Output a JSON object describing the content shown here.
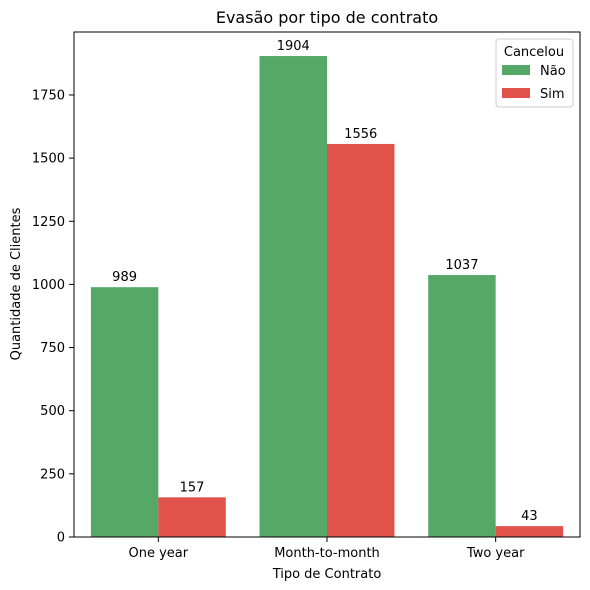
{
  "chart_data": {
    "type": "bar",
    "title": "Evasão por tipo de contrato",
    "xlabel": "Tipo de Contrato",
    "ylabel": "Quantidade de Clientes",
    "categories": [
      "One year",
      "Month-to-month",
      "Two year"
    ],
    "series": [
      {
        "name": "Não",
        "values": [
          989,
          1904,
          1037
        ],
        "color": "#55a868"
      },
      {
        "name": "Sim",
        "values": [
          157,
          1556,
          43
        ],
        "color": "#e1524a"
      }
    ],
    "yticks": [
      0,
      250,
      500,
      750,
      1000,
      1250,
      1500,
      1750
    ],
    "ylim": [
      0,
      1999.2
    ],
    "legend": {
      "title": "Cancelou",
      "position": "top-right"
    },
    "grid": false
  }
}
